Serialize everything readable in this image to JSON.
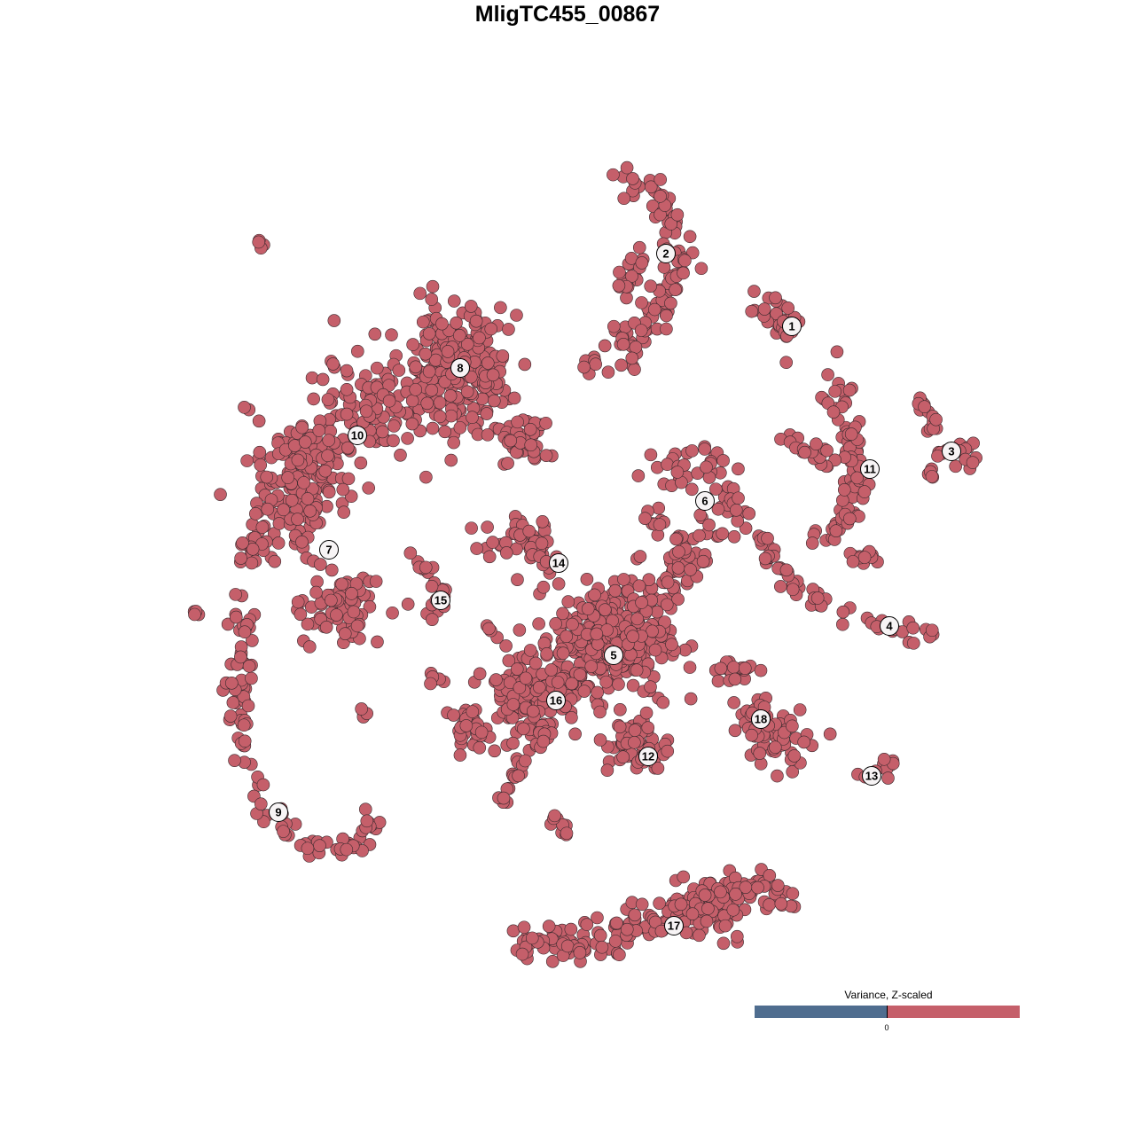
{
  "title": "MligTC455_00867",
  "legend": {
    "title": "Variance, Z-scaled",
    "tick": "0",
    "low_color": "#4f6d8f",
    "high_color": "#c55f6a"
  },
  "chart_data": {
    "type": "scatter",
    "title": "MligTC455_00867",
    "xlabel": "",
    "ylabel": "",
    "grid": false,
    "axes_visible": false,
    "legend_placement": "bottom-right",
    "point_color": "#c55f6a",
    "point_outline": "#3a2a2e",
    "cluster_labels": [
      {
        "label": "1",
        "x": 25.3,
        "y": 27.2
      },
      {
        "label": "2",
        "x": 11.1,
        "y": 35.4
      },
      {
        "label": "3",
        "x": 43.3,
        "y": 13.1
      },
      {
        "label": "4",
        "x": 36.3,
        "y": -6.6
      },
      {
        "label": "5",
        "x": 5.2,
        "y": -9.9
      },
      {
        "label": "6",
        "x": 15.5,
        "y": 7.5
      },
      {
        "label": "7",
        "x": -26.9,
        "y": 2
      },
      {
        "label": "8",
        "x": -12.1,
        "y": 22.5
      },
      {
        "label": "9",
        "x": -32.6,
        "y": -27.6
      },
      {
        "label": "10",
        "x": -23.7,
        "y": 14.9
      },
      {
        "label": "11",
        "x": 34.1,
        "y": 11.1
      },
      {
        "label": "12",
        "x": 9.1,
        "y": -21.3
      },
      {
        "label": "13",
        "x": 34.3,
        "y": -23.5
      },
      {
        "label": "14",
        "x": -1,
        "y": 0.5
      },
      {
        "label": "15",
        "x": -14.3,
        "y": -3.7
      },
      {
        "label": "16",
        "x": -1.3,
        "y": -15
      },
      {
        "label": "17",
        "x": 12,
        "y": -40.4
      },
      {
        "label": "18",
        "x": 21.8,
        "y": -17.1
      }
    ],
    "point_groups": [
      {
        "path": [
          [
            5,
            44.5
          ],
          [
            10,
            42.5
          ],
          [
            12,
            38
          ],
          [
            13,
            34
          ],
          [
            10.5,
            29
          ],
          [
            7,
            26
          ],
          [
            6,
            23.5
          ],
          [
            2.5,
            22.5
          ]
        ],
        "spread": 1.5,
        "n": 110
      },
      {
        "path": [
          [
            8,
            36
          ],
          [
            6.5,
            31
          ]
        ],
        "spread": 1,
        "n": 20
      },
      {
        "path": [
          [
            24,
            28
          ]
        ],
        "spread": 2,
        "n": 30
      },
      {
        "path": [
          [
            30.5,
            24.2
          ]
        ],
        "spread": 0.3,
        "n": 1
      },
      {
        "path": [
          [
            39,
            19
          ],
          [
            41,
            17
          ],
          [
            42.5,
            13
          ],
          [
            46.5,
            12.2
          ]
        ],
        "spread": 0.8,
        "n": 30
      },
      {
        "path": [
          [
            41,
            10.5
          ]
        ],
        "spread": 0.5,
        "n": 5
      },
      {
        "path": [
          [
            29.5,
            20.5
          ],
          [
            31,
            17
          ],
          [
            32,
            14
          ],
          [
            32.5,
            10
          ],
          [
            32,
            6
          ],
          [
            30,
            4
          ],
          [
            27.5,
            2.5
          ]
        ],
        "spread": 1.2,
        "n": 80
      },
      {
        "path": [
          [
            24,
            14
          ],
          [
            30,
            12
          ]
        ],
        "spread": 1,
        "n": 20
      },
      {
        "path": [
          [
            31,
            1.5
          ],
          [
            36,
            1
          ]
        ],
        "spread": 0.7,
        "n": 12
      },
      {
        "path": [
          [
            21.5,
            4
          ],
          [
            24,
            -1
          ],
          [
            29,
            -4.5
          ],
          [
            34,
            -6.5
          ],
          [
            41.5,
            -7
          ]
        ],
        "spread": 0.8,
        "n": 55
      },
      {
        "path": [
          [
            10.5,
            11
          ],
          [
            16,
            11.5
          ],
          [
            19,
            6.5
          ],
          [
            15,
            4
          ],
          [
            12,
            0
          ],
          [
            10,
            -5
          ]
        ],
        "spread": 2,
        "n": 110
      },
      {
        "path": [
          [
            9.5,
            5
          ]
        ],
        "spread": 1,
        "n": 10
      },
      {
        "path": [
          [
            -12,
            22
          ]
        ],
        "spread": 5,
        "n": 250
      },
      {
        "path": [
          [
            -22,
            18
          ]
        ],
        "spread": 4,
        "n": 100
      },
      {
        "path": [
          [
            -30,
            12
          ]
        ],
        "spread": 4,
        "n": 100
      },
      {
        "path": [
          [
            -31,
            6
          ]
        ],
        "spread": 3.5,
        "n": 80
      },
      {
        "path": [
          [
            -5,
            14
          ]
        ],
        "spread": 2,
        "n": 40
      },
      {
        "path": [
          [
            -36,
            2
          ]
        ],
        "spread": 1.5,
        "n": 15
      },
      {
        "path": [
          [
            -25,
            -4
          ]
        ],
        "spread": 3,
        "n": 80
      },
      {
        "path": [
          [
            -36.5,
            -4
          ],
          [
            -37,
            -12
          ],
          [
            -37,
            -20
          ],
          [
            -35,
            -26
          ],
          [
            -30,
            -30
          ],
          [
            -25,
            -32
          ],
          [
            -21.5,
            -28.5
          ]
        ],
        "spread": 1,
        "n": 110
      },
      {
        "path": [
          [
            -18,
            1.5
          ],
          [
            -15,
            -1
          ],
          [
            -14,
            -3
          ],
          [
            -16,
            -6.5
          ]
        ],
        "spread": 0.6,
        "n": 20
      },
      {
        "path": [
          [
            -10,
            2.8
          ],
          [
            -4,
            4
          ],
          [
            -2,
            0
          ]
        ],
        "spread": 1.4,
        "n": 45
      },
      {
        "path": [
          [
            5,
            -8
          ]
        ],
        "spread": 4.5,
        "n": 350
      },
      {
        "path": [
          [
            -4,
            -14
          ]
        ],
        "spread": 4,
        "n": 150
      },
      {
        "path": [
          [
            -11,
            -18
          ]
        ],
        "spread": 1.5,
        "n": 30
      },
      {
        "path": [
          [
            8,
            -20
          ]
        ],
        "spread": 2.5,
        "n": 60
      },
      {
        "path": [
          [
            21,
            -16
          ],
          [
            23,
            -21
          ],
          [
            26,
            -19
          ]
        ],
        "spread": 1.8,
        "n": 70
      },
      {
        "path": [
          [
            17.5,
            -11.5
          ],
          [
            21,
            -12
          ]
        ],
        "spread": 1,
        "n": 20
      },
      {
        "path": [
          [
            33,
            -23.8
          ],
          [
            37,
            -22.2
          ]
        ],
        "spread": 0.6,
        "n": 12
      },
      {
        "path": [
          [
            -2,
            -18
          ],
          [
            -6,
            -24
          ],
          [
            -8.5,
            -27.5
          ]
        ],
        "spread": 0.8,
        "n": 25
      },
      {
        "path": [
          [
            -2,
            -27
          ],
          [
            0.5,
            -31.5
          ]
        ],
        "spread": 0.6,
        "n": 10
      },
      {
        "path": [
          [
            -6,
            -42.5
          ],
          [
            4,
            -42
          ],
          [
            12,
            -39
          ],
          [
            21,
            -36
          ],
          [
            25.5,
            -37.5
          ]
        ],
        "spread": 1.5,
        "n": 180
      },
      {
        "path": [
          [
            16,
            -38
          ]
        ],
        "spread": 2.5,
        "n": 60
      },
      {
        "path": [
          [
            -34.5,
            36.5
          ]
        ],
        "spread": 0.4,
        "n": 4
      },
      {
        "path": [
          [
            -42,
            -5
          ]
        ],
        "spread": 0.4,
        "n": 4
      },
      {
        "path": [
          [
            -23,
            -16.5
          ]
        ],
        "spread": 0.5,
        "n": 5
      },
      {
        "path": [
          [
            -15.2,
            -12.2
          ]
        ],
        "spread": 0.8,
        "n": 6
      },
      {
        "path": [
          [
            -9,
            -6.8
          ]
        ],
        "spread": 0.4,
        "n": 3
      }
    ]
  }
}
